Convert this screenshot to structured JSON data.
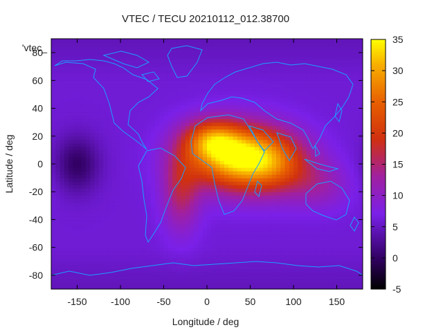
{
  "chart_data": {
    "type": "heatmap",
    "title": "VTEC / TECU 20210112_012.38700",
    "xlabel": "Longitude / deg",
    "ylabel": "Latitude / deg",
    "legend_key": "'vtec_",
    "xlim": [
      -180,
      180
    ],
    "ylim": [
      -90,
      90
    ],
    "xticks": [
      -150,
      -100,
      -50,
      0,
      50,
      100,
      150
    ],
    "yticks": [
      -80,
      -60,
      -40,
      -20,
      0,
      20,
      40,
      60,
      80
    ],
    "colorbar": {
      "range": [
        -5,
        35
      ],
      "ticks": [
        -5,
        0,
        5,
        10,
        15,
        20,
        25,
        30,
        35
      ],
      "palette": "black-purple-red-yellow"
    },
    "field": {
      "background": 6,
      "features": [
        {
          "lon": 35,
          "lat": 5,
          "peak": 27,
          "sx": 40,
          "sy": 16
        },
        {
          "lon": 5,
          "lat": 18,
          "peak": 13,
          "sx": 22,
          "sy": 10
        },
        {
          "lon": -30,
          "lat": -20,
          "peak": 9,
          "sx": 15,
          "sy": 20
        },
        {
          "lon": 80,
          "lat": 0,
          "peak": 10,
          "sx": 30,
          "sy": 15
        },
        {
          "lon": 130,
          "lat": -15,
          "peak": 5,
          "sx": 25,
          "sy": 12
        },
        {
          "lon": -150,
          "lat": 0,
          "peak": -6,
          "sx": 18,
          "sy": 14
        }
      ]
    },
    "grid": false
  }
}
